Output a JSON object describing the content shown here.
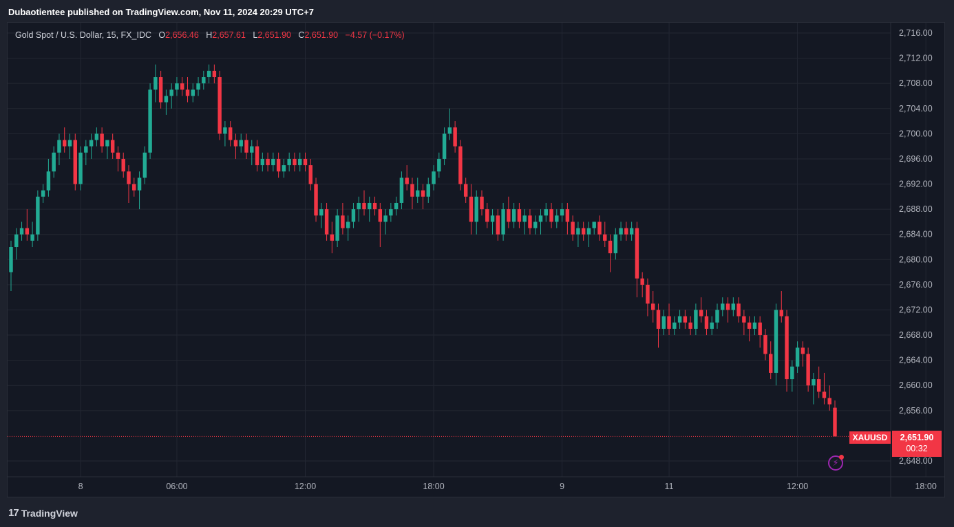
{
  "header": {
    "published": "Dubaotientee published on TradingView.com, Nov 11, 2024 20:29 UTC+7"
  },
  "legend": {
    "instrument": "Gold Spot / U.S. Dollar, 15, FX_IDC",
    "o_label": "O",
    "o_value": "2,656.46",
    "h_label": "H",
    "h_value": "2,657.61",
    "l_label": "L",
    "l_value": "2,651.90",
    "c_label": "C",
    "c_value": "2,651.90",
    "change": "−4.57 (−0.17%)"
  },
  "price_tag": {
    "symbol": "XAUUSD",
    "price": "2,651.90",
    "countdown": "00:32"
  },
  "footer": {
    "brand": "TradingView",
    "logo": "17"
  },
  "colors": {
    "up": "#22ab94",
    "down": "#f23645",
    "grid": "#232733",
    "text": "#b2b5be"
  },
  "chart_data": {
    "type": "candlestick",
    "ylim": [
      2646,
      2718
    ],
    "yticks": [
      "2,716.00",
      "2,712.00",
      "2,708.00",
      "2,704.00",
      "2,700.00",
      "2,696.00",
      "2,692.00",
      "2,688.00",
      "2,684.00",
      "2,680.00",
      "2,676.00",
      "2,672.00",
      "2,668.00",
      "2,664.00",
      "2,660.00",
      "2,656.00",
      "2,648.00"
    ],
    "ytick_values": [
      2716,
      2712,
      2708,
      2704,
      2700,
      2696,
      2692,
      2688,
      2684,
      2680,
      2676,
      2672,
      2668,
      2664,
      2660,
      2656,
      2648
    ],
    "xticks": [
      {
        "label": "8",
        "index": 13
      },
      {
        "label": "06:00",
        "index": 31
      },
      {
        "label": "12:00",
        "index": 55
      },
      {
        "label": "18:00",
        "index": 79
      },
      {
        "label": "9",
        "index": 103
      },
      {
        "label": "11",
        "index": 123
      },
      {
        "label": "12:00",
        "index": 147
      },
      {
        "label": "18:00",
        "index": 171
      }
    ],
    "last_price": 2651.9,
    "candles": [
      [
        2678,
        2683,
        2675,
        2682
      ],
      [
        2682,
        2685,
        2680,
        2684
      ],
      [
        2684,
        2686,
        2683,
        2685
      ],
      [
        2685,
        2688,
        2683,
        2684
      ],
      [
        2683,
        2686,
        2682,
        2684
      ],
      [
        2684,
        2691,
        2683,
        2690
      ],
      [
        2690,
        2692,
        2689,
        2691
      ],
      [
        2691,
        2696,
        2690,
        2694
      ],
      [
        2694,
        2698,
        2693,
        2697
      ],
      [
        2697,
        2700,
        2695,
        2699
      ],
      [
        2699,
        2701,
        2697,
        2698
      ],
      [
        2698,
        2700,
        2696,
        2699
      ],
      [
        2699,
        2700,
        2691,
        2692
      ],
      [
        2692,
        2698,
        2691,
        2697
      ],
      [
        2697,
        2699,
        2695,
        2698
      ],
      [
        2698,
        2700,
        2696,
        2699
      ],
      [
        2699,
        2701,
        2698,
        2700
      ],
      [
        2700,
        2701,
        2697,
        2698
      ],
      [
        2698,
        2699,
        2696,
        2699
      ],
      [
        2699,
        2700,
        2696,
        2697
      ],
      [
        2697,
        2698,
        2694,
        2696
      ],
      [
        2696,
        2697,
        2693,
        2694
      ],
      [
        2694,
        2695,
        2689,
        2692
      ],
      [
        2692,
        2693,
        2690,
        2691
      ],
      [
        2691,
        2694,
        2688,
        2693
      ],
      [
        2693,
        2698,
        2692,
        2697
      ],
      [
        2697,
        2708,
        2696,
        2707
      ],
      [
        2707,
        2711,
        2705,
        2709
      ],
      [
        2709,
        2710,
        2704,
        2705
      ],
      [
        2705,
        2707,
        2703,
        2706
      ],
      [
        2706,
        2708,
        2704,
        2707
      ],
      [
        2707,
        2709,
        2706,
        2708
      ],
      [
        2708,
        2709,
        2706,
        2707
      ],
      [
        2707,
        2709,
        2705,
        2706
      ],
      [
        2706,
        2708,
        2705,
        2707
      ],
      [
        2707,
        2709,
        2706,
        2708
      ],
      [
        2708,
        2710,
        2707,
        2709
      ],
      [
        2709,
        2711,
        2708,
        2710
      ],
      [
        2710,
        2711,
        2708,
        2709
      ],
      [
        2709,
        2710,
        2699,
        2700
      ],
      [
        2700,
        2702,
        2698,
        2701
      ],
      [
        2701,
        2702,
        2698,
        2699
      ],
      [
        2699,
        2700,
        2696,
        2698
      ],
      [
        2698,
        2700,
        2697,
        2699
      ],
      [
        2699,
        2700,
        2696,
        2697
      ],
      [
        2697,
        2699,
        2695,
        2698
      ],
      [
        2698,
        2699,
        2694,
        2695
      ],
      [
        2695,
        2697,
        2694,
        2696
      ],
      [
        2696,
        2697,
        2694,
        2695
      ],
      [
        2695,
        2697,
        2694,
        2696
      ],
      [
        2696,
        2697,
        2693,
        2694
      ],
      [
        2694,
        2696,
        2693,
        2695
      ],
      [
        2695,
        2697,
        2694,
        2696
      ],
      [
        2696,
        2697,
        2694,
        2695
      ],
      [
        2695,
        2697,
        2694,
        2696
      ],
      [
        2696,
        2697,
        2694,
        2695
      ],
      [
        2695,
        2696,
        2691,
        2692
      ],
      [
        2692,
        2693,
        2686,
        2687
      ],
      [
        2687,
        2689,
        2685,
        2688
      ],
      [
        2688,
        2689,
        2683,
        2684
      ],
      [
        2684,
        2686,
        2681,
        2683
      ],
      [
        2683,
        2688,
        2682,
        2687
      ],
      [
        2687,
        2689,
        2684,
        2685
      ],
      [
        2685,
        2687,
        2683,
        2686
      ],
      [
        2686,
        2689,
        2685,
        2688
      ],
      [
        2688,
        2690,
        2686,
        2689
      ],
      [
        2689,
        2691,
        2687,
        2688
      ],
      [
        2688,
        2690,
        2686,
        2689
      ],
      [
        2689,
        2690,
        2687,
        2688
      ],
      [
        2688,
        2689,
        2682,
        2686
      ],
      [
        2686,
        2688,
        2684,
        2687
      ],
      [
        2687,
        2689,
        2686,
        2688
      ],
      [
        2688,
        2690,
        2687,
        2689
      ],
      [
        2689,
        2694,
        2688,
        2693
      ],
      [
        2693,
        2695,
        2691,
        2692
      ],
      [
        2692,
        2693,
        2688,
        2690
      ],
      [
        2690,
        2693,
        2689,
        2691
      ],
      [
        2691,
        2692,
        2688,
        2690
      ],
      [
        2690,
        2693,
        2689,
        2692
      ],
      [
        2692,
        2695,
        2691,
        2694
      ],
      [
        2694,
        2697,
        2693,
        2696
      ],
      [
        2696,
        2701,
        2695,
        2700
      ],
      [
        2700,
        2704,
        2699,
        2701
      ],
      [
        2701,
        2702,
        2697,
        2698
      ],
      [
        2698,
        2699,
        2691,
        2692
      ],
      [
        2692,
        2693,
        2689,
        2690
      ],
      [
        2690,
        2692,
        2684,
        2686
      ],
      [
        2686,
        2691,
        2684,
        2690
      ],
      [
        2690,
        2691,
        2687,
        2688
      ],
      [
        2688,
        2689,
        2685,
        2686
      ],
      [
        2686,
        2688,
        2684,
        2687
      ],
      [
        2687,
        2688,
        2683,
        2684
      ],
      [
        2684,
        2689,
        2683,
        2688
      ],
      [
        2688,
        2690,
        2685,
        2686
      ],
      [
        2686,
        2689,
        2685,
        2688
      ],
      [
        2688,
        2689,
        2685,
        2686
      ],
      [
        2686,
        2688,
        2684,
        2687
      ],
      [
        2687,
        2688,
        2684,
        2685
      ],
      [
        2685,
        2687,
        2684,
        2686
      ],
      [
        2686,
        2688,
        2684,
        2687
      ],
      [
        2687,
        2689,
        2686,
        2688
      ],
      [
        2688,
        2689,
        2685,
        2686
      ],
      [
        2686,
        2688,
        2685,
        2687
      ],
      [
        2687,
        2689,
        2686,
        2688
      ],
      [
        2688,
        2689,
        2684,
        2686
      ],
      [
        2686,
        2687,
        2683,
        2684
      ],
      [
        2684,
        2686,
        2682,
        2685
      ],
      [
        2685,
        2686,
        2683,
        2684
      ],
      [
        2684,
        2686,
        2682,
        2685
      ],
      [
        2685,
        2686,
        2684,
        2686
      ],
      [
        2686,
        2687,
        2683,
        2684
      ],
      [
        2684,
        2686,
        2682,
        2683
      ],
      [
        2683,
        2684,
        2678,
        2681
      ],
      [
        2681,
        2685,
        2680,
        2684
      ],
      [
        2684,
        2686,
        2683,
        2685
      ],
      [
        2685,
        2686,
        2683,
        2684
      ],
      [
        2684,
        2686,
        2683,
        2685
      ],
      [
        2685,
        2686,
        2674,
        2677
      ],
      [
        2677,
        2678,
        2674,
        2676
      ],
      [
        2676,
        2677,
        2671,
        2673
      ],
      [
        2673,
        2675,
        2670,
        2672
      ],
      [
        2672,
        2673,
        2666,
        2669
      ],
      [
        2669,
        2672,
        2668,
        2671
      ],
      [
        2671,
        2673,
        2668,
        2669
      ],
      [
        2669,
        2671,
        2668,
        2670
      ],
      [
        2670,
        2672,
        2669,
        2671
      ],
      [
        2671,
        2672,
        2669,
        2670
      ],
      [
        2670,
        2671,
        2668,
        2669
      ],
      [
        2669,
        2673,
        2668,
        2672
      ],
      [
        2672,
        2674,
        2670,
        2671
      ],
      [
        2671,
        2672,
        2668,
        2669
      ],
      [
        2669,
        2671,
        2668,
        2670
      ],
      [
        2670,
        2673,
        2669,
        2672
      ],
      [
        2672,
        2674,
        2671,
        2673
      ],
      [
        2673,
        2674,
        2670,
        2672
      ],
      [
        2672,
        2674,
        2671,
        2673
      ],
      [
        2673,
        2674,
        2670,
        2671
      ],
      [
        2671,
        2672,
        2668,
        2670
      ],
      [
        2670,
        2671,
        2667,
        2669
      ],
      [
        2669,
        2671,
        2668,
        2670
      ],
      [
        2670,
        2671,
        2666,
        2668
      ],
      [
        2668,
        2669,
        2664,
        2665
      ],
      [
        2665,
        2667,
        2661,
        2662
      ],
      [
        2662,
        2673,
        2660,
        2672
      ],
      [
        2672,
        2675,
        2670,
        2671
      ],
      [
        2671,
        2672,
        2659,
        2661
      ],
      [
        2661,
        2664,
        2659,
        2663
      ],
      [
        2663,
        2667,
        2662,
        2666
      ],
      [
        2666,
        2667,
        2663,
        2665
      ],
      [
        2665,
        2666,
        2659,
        2660
      ],
      [
        2660,
        2662,
        2657,
        2661
      ],
      [
        2661,
        2663,
        2658,
        2659
      ],
      [
        2659,
        2662,
        2657,
        2658
      ],
      [
        2658,
        2660,
        2656,
        2657
      ],
      [
        2656.46,
        2657.61,
        2651.9,
        2651.9
      ]
    ]
  }
}
